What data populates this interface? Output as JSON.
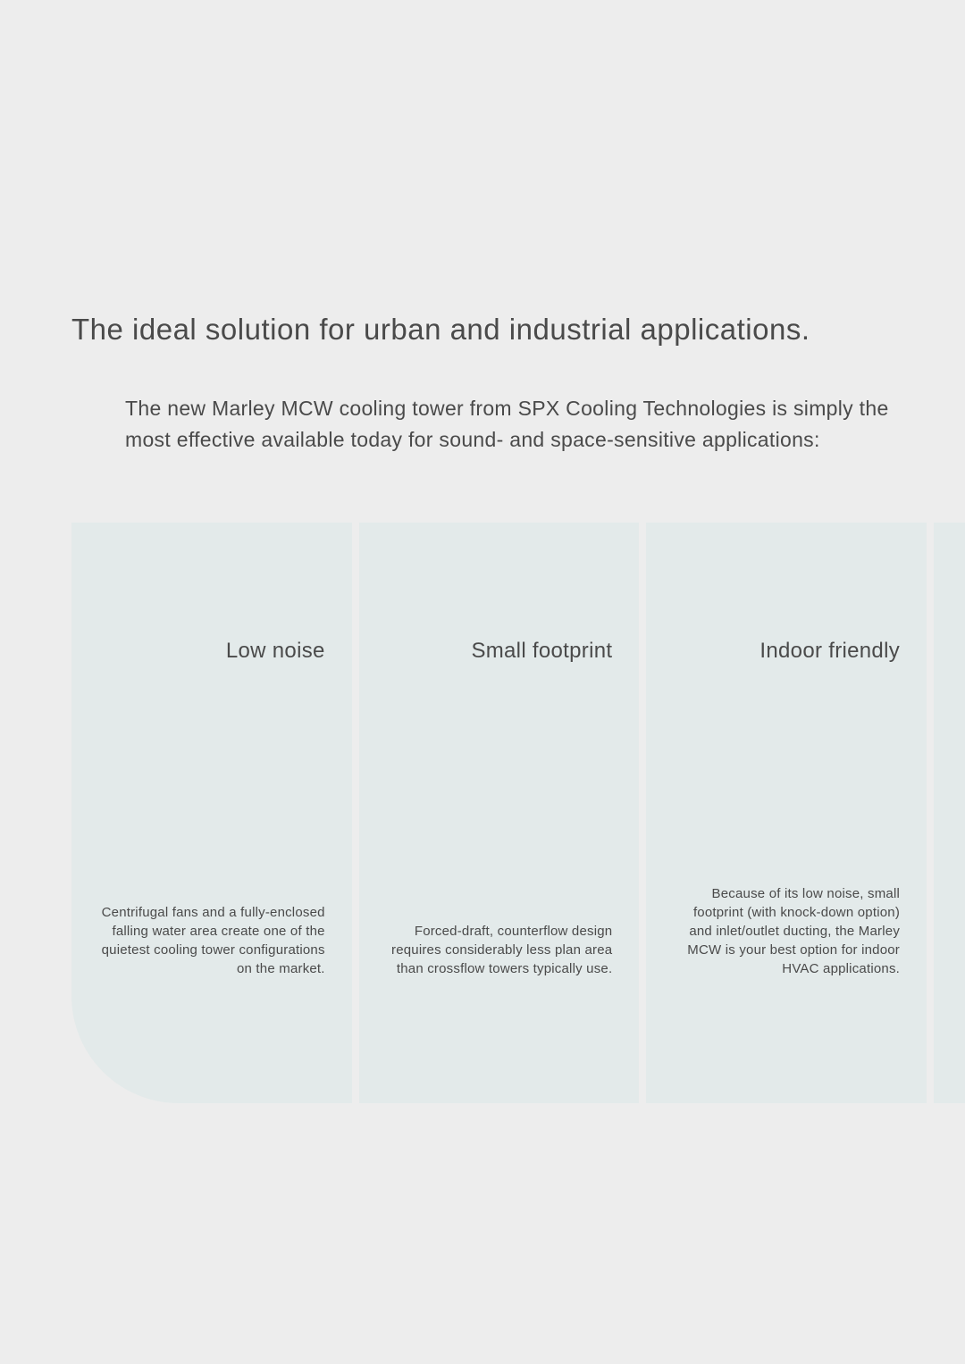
{
  "colors": {
    "page_bg": "#ededed",
    "feature_bg": "#e3eaea",
    "text": "#4a4a4a",
    "white": "#ffffff"
  },
  "typography": {
    "headline_fontsize": 33,
    "intro_fontsize": 23,
    "feature_title_fontsize": 24,
    "feature_body_fontsize": 15
  },
  "headline": "The ideal solution for urban and industrial applications.",
  "intro": "The new Marley MCW cooling tower from SPX Cooling Technologies is simply the most effective available today for sound- and space-sensitive applications:",
  "features": [
    {
      "title": "Low noise",
      "body": "Centrifugal fans and a fully-enclosed falling water area create one of the quietest cooling tower configurations on the market."
    },
    {
      "title": "Small footprint",
      "body": "Forced-draft, counterflow design requires considerably less plan area than crossflow towers typically use."
    },
    {
      "title": "Indoor friendly",
      "body": "Because of its low noise, small footprint (with knock-down option) and inlet/outlet ducting, the Marley MCW is your best option for indoor HVAC applications."
    }
  ]
}
